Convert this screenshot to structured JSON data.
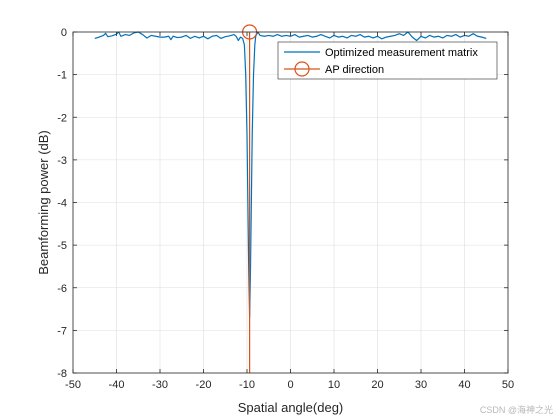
{
  "chart_data": {
    "type": "line",
    "title": "",
    "xlabel": "Spatial angle(deg)",
    "ylabel": "Beamforming power (dB)",
    "xlim": [
      -50,
      50
    ],
    "ylim": [
      -8,
      0
    ],
    "x_ticks": [
      -50,
      -40,
      -30,
      -20,
      -10,
      0,
      10,
      20,
      30,
      40,
      50
    ],
    "y_ticks": [
      0,
      -1,
      -2,
      -3,
      -4,
      -5,
      -6,
      -7,
      -8
    ],
    "grid": true,
    "legend_position": "top-right",
    "series": [
      {
        "name": "Optimized measurement matrix",
        "color": "#0072BD",
        "marker": "none",
        "points": [
          [
            -45,
            -0.15
          ],
          [
            -44,
            -0.12
          ],
          [
            -43,
            -0.08
          ],
          [
            -42.5,
            -0.03
          ],
          [
            -42,
            -0.11
          ],
          [
            -41,
            -0.09
          ],
          [
            -40,
            -0.05
          ],
          [
            -39.5,
            0.0
          ],
          [
            -39,
            -0.1
          ],
          [
            -38,
            -0.06
          ],
          [
            -37,
            -0.08
          ],
          [
            -36,
            -0.02
          ],
          [
            -35,
            0.0
          ],
          [
            -34,
            -0.06
          ],
          [
            -33,
            -0.14
          ],
          [
            -32,
            -0.08
          ],
          [
            -31,
            -0.1
          ],
          [
            -30,
            -0.12
          ],
          [
            -29,
            -0.12
          ],
          [
            -28,
            -0.1
          ],
          [
            -27.5,
            -0.18
          ],
          [
            -27,
            -0.1
          ],
          [
            -26,
            -0.13
          ],
          [
            -25,
            -0.12
          ],
          [
            -24,
            -0.08
          ],
          [
            -23,
            -0.15
          ],
          [
            -22,
            -0.1
          ],
          [
            -21,
            -0.14
          ],
          [
            -20,
            -0.1
          ],
          [
            -19,
            -0.16
          ],
          [
            -18,
            -0.1
          ],
          [
            -17,
            -0.08
          ],
          [
            -16,
            -0.15
          ],
          [
            -15,
            -0.11
          ],
          [
            -14,
            -0.09
          ],
          [
            -13,
            -0.06
          ],
          [
            -12.5,
            -0.1
          ],
          [
            -12,
            -0.2
          ],
          [
            -11.5,
            -0.12
          ],
          [
            -11,
            -0.15
          ],
          [
            -10.6,
            -0.3
          ],
          [
            -10.3,
            -1.0
          ],
          [
            -10,
            -2.4
          ],
          [
            -9.8,
            -4.0
          ],
          [
            -9.6,
            -5.6
          ],
          [
            -9.4,
            -6.7
          ],
          [
            -9.2,
            -5.6
          ],
          [
            -9.0,
            -4.0
          ],
          [
            -8.8,
            -2.4
          ],
          [
            -8.5,
            -1.0
          ],
          [
            -8.2,
            -0.3
          ],
          [
            -8,
            -0.1
          ],
          [
            -7.5,
            0.0
          ],
          [
            -7,
            -0.08
          ],
          [
            -6,
            -0.1
          ],
          [
            -5,
            -0.08
          ],
          [
            -4,
            -0.1
          ],
          [
            -3,
            -0.06
          ],
          [
            -2,
            -0.1
          ],
          [
            -1,
            -0.08
          ],
          [
            0,
            -0.1
          ],
          [
            1,
            -0.06
          ],
          [
            2,
            -0.12
          ],
          [
            3,
            -0.1
          ],
          [
            4,
            -0.08
          ],
          [
            5,
            -0.12
          ],
          [
            6,
            -0.1
          ],
          [
            7,
            -0.06
          ],
          [
            8,
            -0.1
          ],
          [
            9,
            -0.14
          ],
          [
            10,
            -0.08
          ],
          [
            11,
            -0.12
          ],
          [
            12,
            -0.1
          ],
          [
            13,
            -0.14
          ],
          [
            14,
            -0.08
          ],
          [
            15,
            -0.1
          ],
          [
            16,
            -0.06
          ],
          [
            17,
            -0.12
          ],
          [
            18,
            -0.1
          ],
          [
            19,
            -0.14
          ],
          [
            20,
            -0.1
          ],
          [
            21,
            -0.16
          ],
          [
            22,
            -0.12
          ],
          [
            23,
            -0.1
          ],
          [
            24,
            -0.08
          ],
          [
            25,
            -0.04
          ],
          [
            26,
            -0.08
          ],
          [
            27,
            0.0
          ],
          [
            28,
            -0.12
          ],
          [
            29,
            -0.2
          ],
          [
            30,
            -0.1
          ],
          [
            31,
            -0.14
          ],
          [
            32,
            -0.08
          ],
          [
            33,
            -0.12
          ],
          [
            34,
            -0.1
          ],
          [
            35,
            -0.14
          ],
          [
            36,
            -0.08
          ],
          [
            37,
            -0.1
          ],
          [
            38,
            -0.06
          ],
          [
            39,
            -0.12
          ],
          [
            40,
            -0.08
          ],
          [
            41,
            -0.1
          ],
          [
            42,
            -0.04
          ],
          [
            43,
            -0.1
          ],
          [
            44,
            -0.12
          ],
          [
            45,
            -0.15
          ]
        ]
      },
      {
        "name": "AP direction",
        "color": "#D95319",
        "marker": "circle-first",
        "points": [
          [
            -9.4,
            0
          ],
          [
            -9.4,
            -8
          ]
        ]
      }
    ]
  },
  "watermark": "CSDN @海神之光"
}
